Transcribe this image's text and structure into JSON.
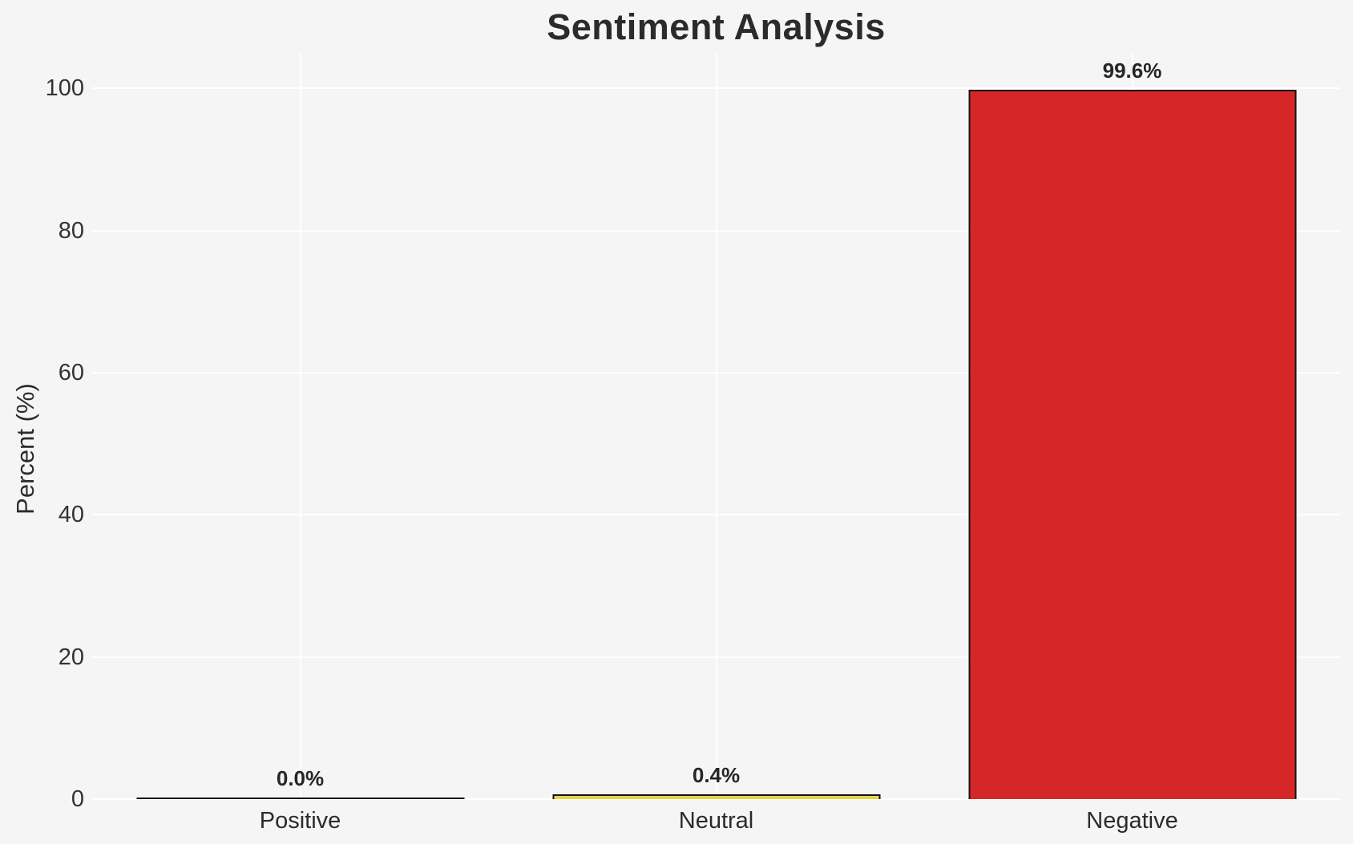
{
  "chart_data": {
    "type": "bar",
    "title": "Sentiment Analysis",
    "xlabel": "",
    "ylabel": "Percent (%)",
    "categories": [
      "Positive",
      "Neutral",
      "Negative"
    ],
    "values": [
      0.0,
      0.4,
      99.6
    ],
    "value_labels": [
      "0.0%",
      "0.4%",
      "99.6%"
    ],
    "bar_colors": [
      "#2ca02c",
      "#e7d34e",
      "#d62728"
    ],
    "bar_edge_color": "#141414",
    "yticks": [
      0,
      20,
      40,
      60,
      80,
      100
    ],
    "ylim": [
      0,
      105
    ],
    "grid": "on",
    "grid_color": "#ffffff",
    "background_color": "#f5f5f6",
    "legend": "none"
  }
}
